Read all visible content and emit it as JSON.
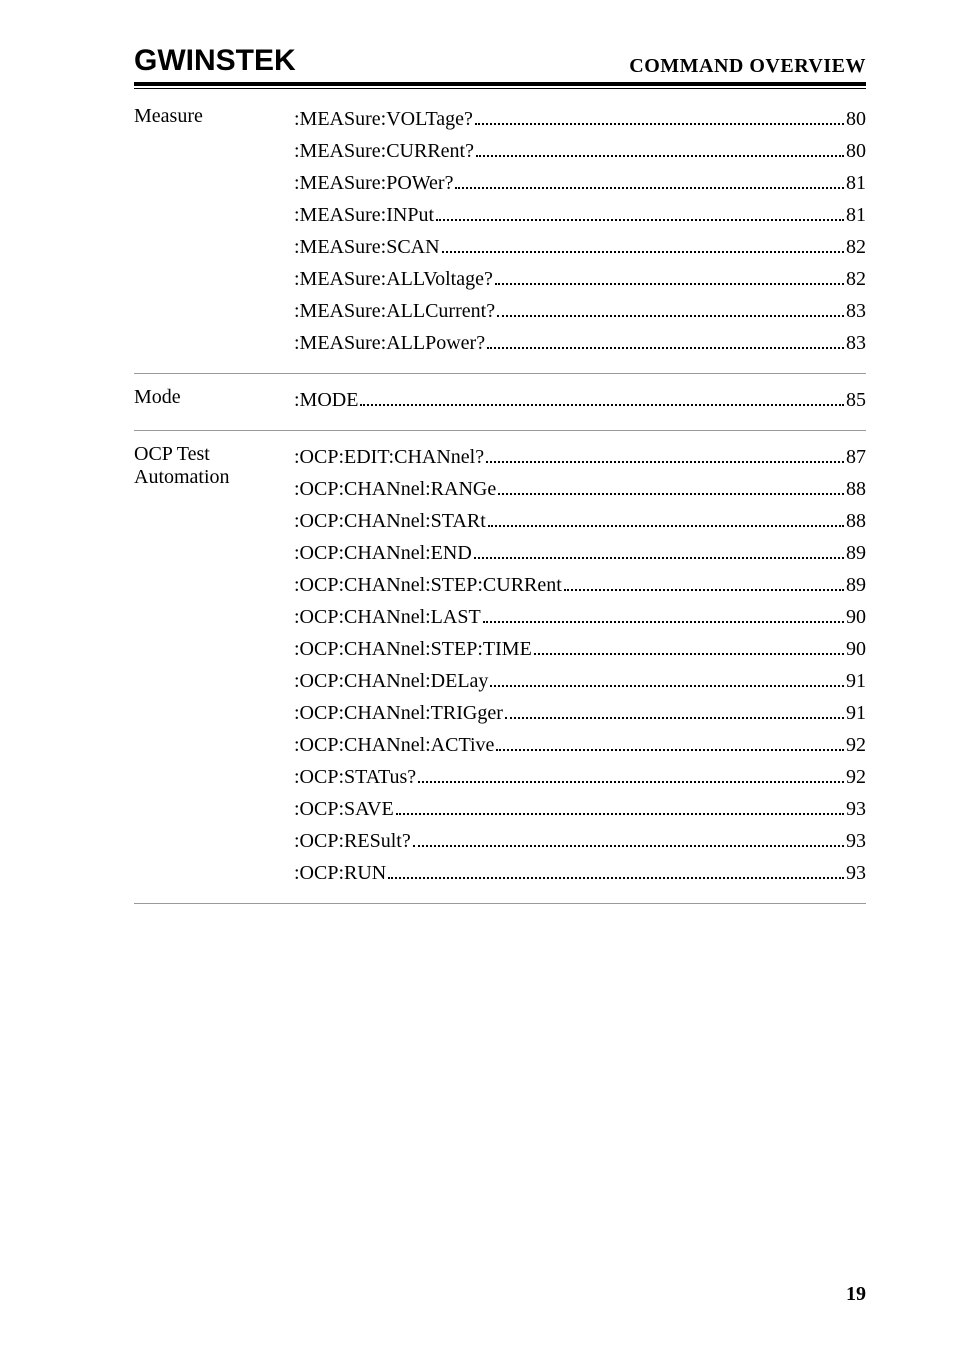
{
  "header": {
    "logo_text": "GWINSTEK",
    "right_title": "COMMAND OVERVIEW"
  },
  "sections": [
    {
      "label": "Measure",
      "entries": [
        {
          "cmd": ":MEASure:VOLTage?",
          "page": "80"
        },
        {
          "cmd": ":MEASure:CURRent?",
          "page": "80"
        },
        {
          "cmd": ":MEASure:POWer?",
          "page": "81"
        },
        {
          "cmd": ":MEASure:INPut",
          "page": "81"
        },
        {
          "cmd": ":MEASure:SCAN",
          "page": "82"
        },
        {
          "cmd": ":MEASure:ALLVoltage?",
          "page": "82"
        },
        {
          "cmd": ":MEASure:ALLCurrent?",
          "page": "83"
        },
        {
          "cmd": ":MEASure:ALLPower?",
          "page": "83"
        }
      ]
    },
    {
      "label": "Mode",
      "entries": [
        {
          "cmd": ":MODE",
          "page": "85"
        }
      ]
    },
    {
      "label": "OCP Test Automation",
      "entries": [
        {
          "cmd": ":OCP:EDIT:CHANnel?",
          "page": "87"
        },
        {
          "cmd": ":OCP:CHANnel:RANGe",
          "page": "88"
        },
        {
          "cmd": ":OCP:CHANnel:STARt",
          "page": "88"
        },
        {
          "cmd": ":OCP:CHANnel:END",
          "page": "89"
        },
        {
          "cmd": ":OCP:CHANnel:STEP:CURRent",
          "page": "89"
        },
        {
          "cmd": ":OCP:CHANnel:LAST",
          "page": "90"
        },
        {
          "cmd": ":OCP:CHANnel:STEP:TIME",
          "page": "90"
        },
        {
          "cmd": ":OCP:CHANnel:DELay",
          "page": "91"
        },
        {
          "cmd": ":OCP:CHANnel:TRIGger",
          "page": "91"
        },
        {
          "cmd": ":OCP:CHANnel:ACTive",
          "page": "92"
        },
        {
          "cmd": ":OCP:STATus?",
          "page": "92"
        },
        {
          "cmd": ":OCP:SAVE",
          "page": "93"
        },
        {
          "cmd": ":OCP:RESult?",
          "page": "93"
        },
        {
          "cmd": ":OCP:RUN",
          "page": "93"
        }
      ]
    }
  ],
  "page_number": "19"
}
